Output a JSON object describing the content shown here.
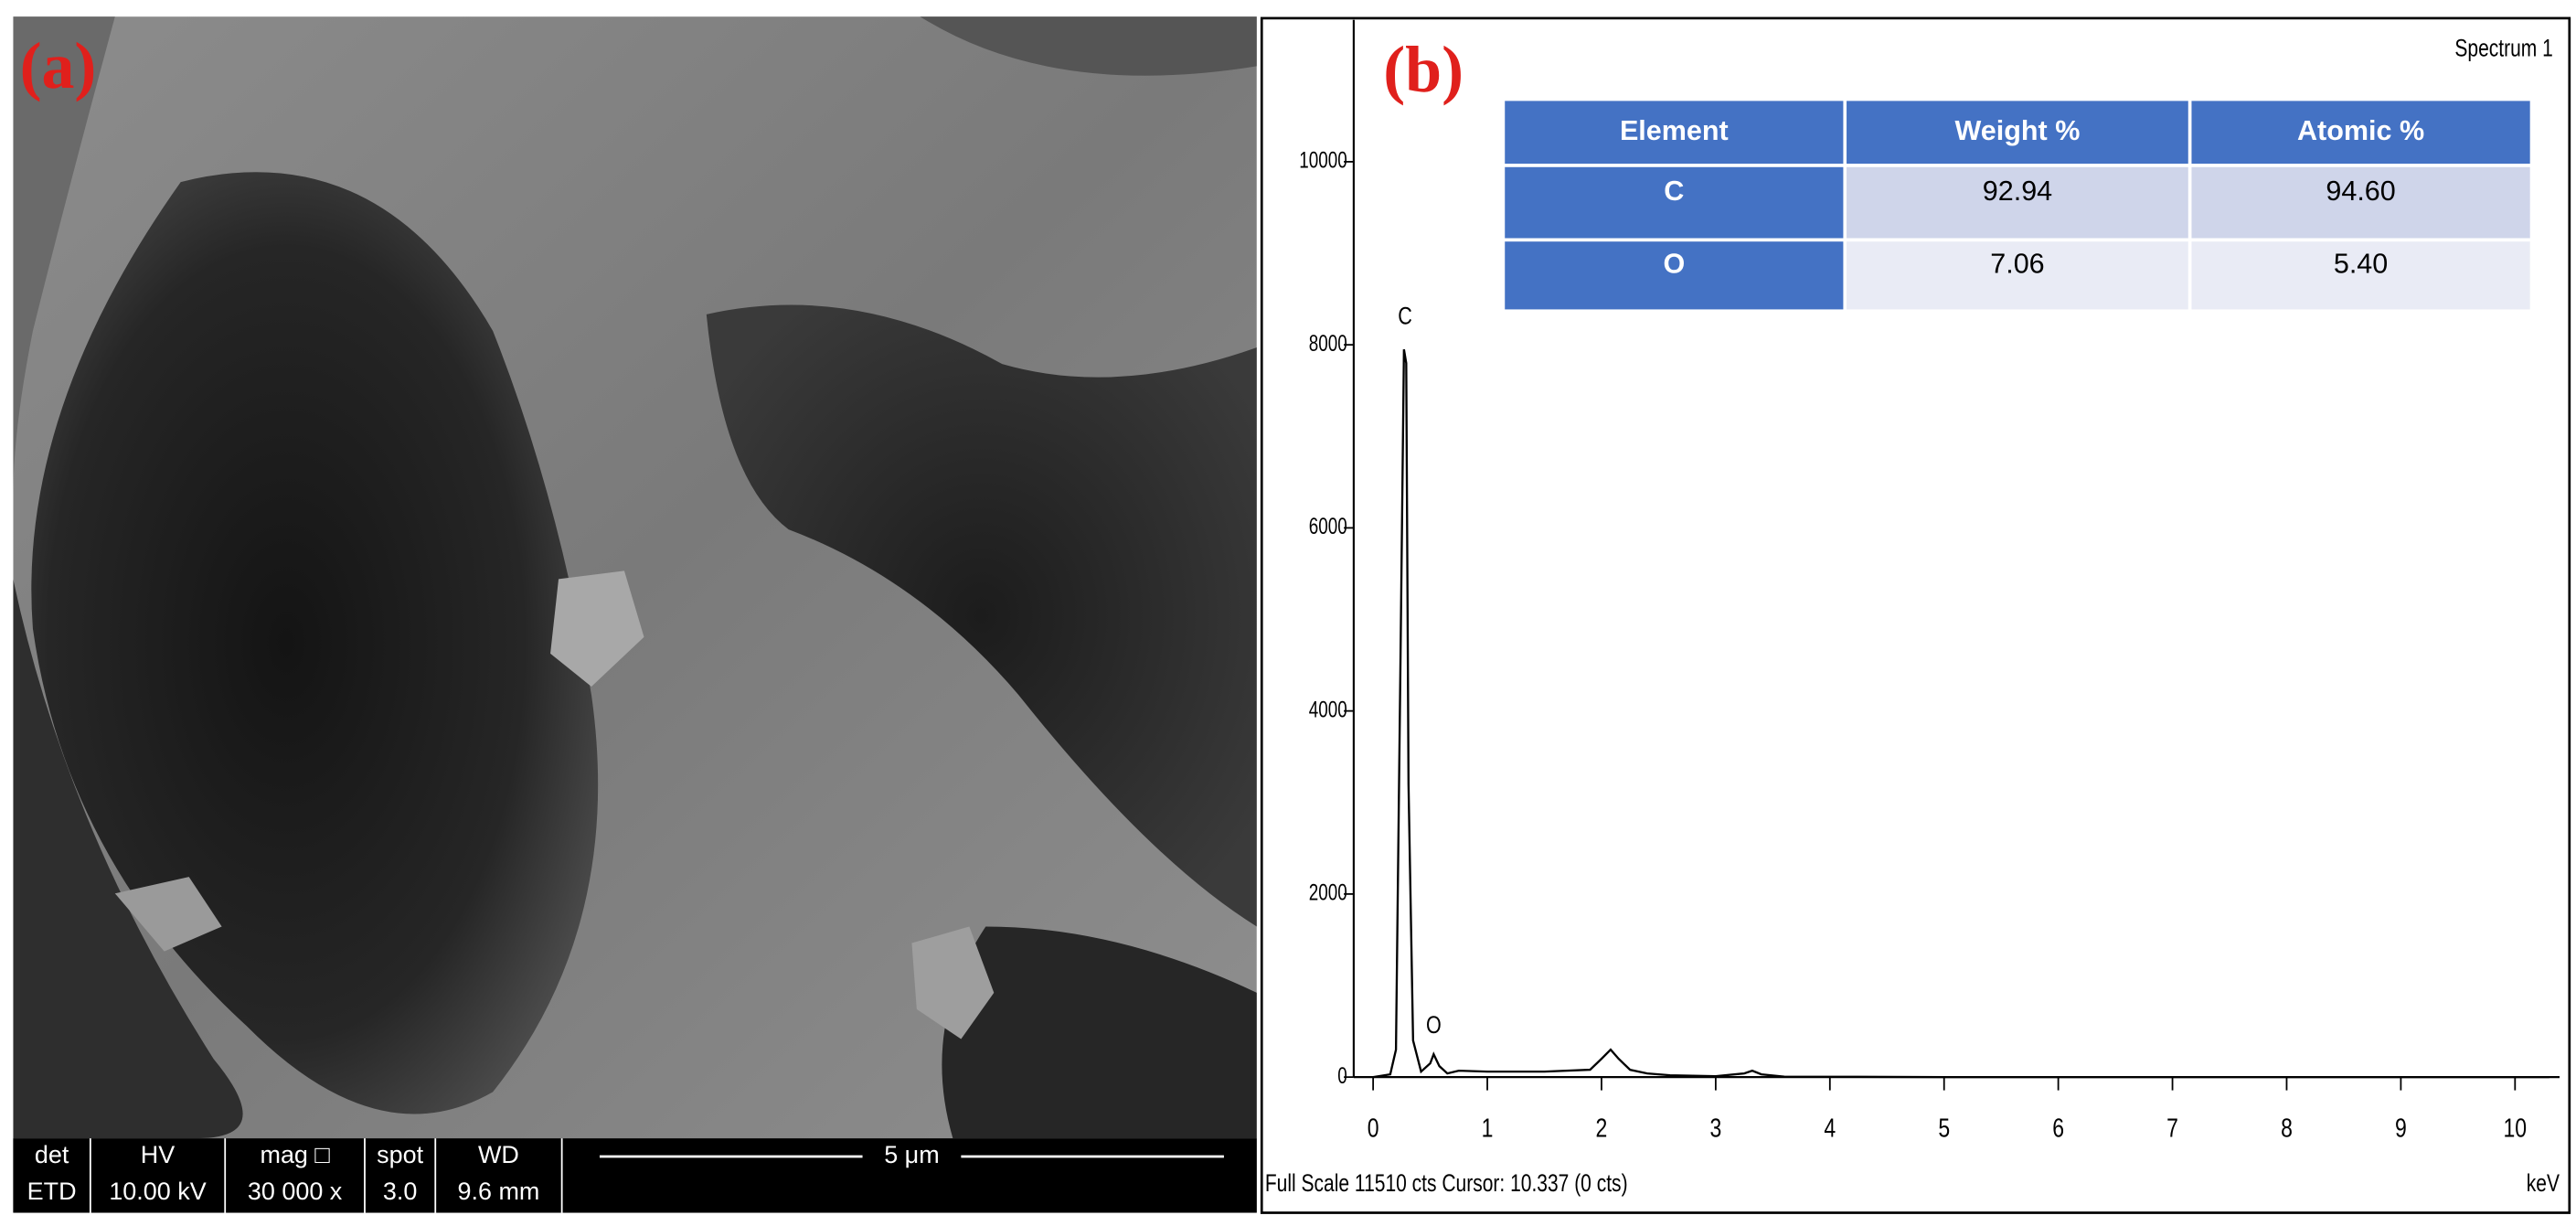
{
  "panel_labels": [
    "(a)",
    "(b)"
  ],
  "sem": {
    "columns": [
      {
        "label": "det",
        "value": "ETD"
      },
      {
        "label": "HV",
        "value": "10.00 kV"
      },
      {
        "label": "mag □",
        "value": "30 000 x"
      },
      {
        "label": "spot",
        "value": "3.0"
      },
      {
        "label": "WD",
        "value": "9.6 mm"
      }
    ],
    "scale_bar": "5 μm"
  },
  "chart_data": {
    "type": "line",
    "title": "Spectrum 1",
    "x_unit": "keV",
    "footer": "Full Scale 11510 cts Cursor: 10.337  (0 cts)",
    "color": "#000000",
    "x": [
      0,
      0.15,
      0.2,
      0.24,
      0.27,
      0.29,
      0.31,
      0.35,
      0.42,
      0.5,
      0.53,
      0.58,
      0.65,
      0.75,
      1.0,
      1.5,
      1.9,
      2.0,
      2.08,
      2.15,
      2.25,
      2.4,
      2.6,
      3.0,
      3.25,
      3.32,
      3.4,
      3.6,
      5,
      10.3
    ],
    "values": [
      0,
      30,
      300,
      4600,
      7950,
      7800,
      3200,
      400,
      60,
      150,
      250,
      120,
      40,
      70,
      60,
      60,
      80,
      200,
      300,
      200,
      80,
      40,
      20,
      10,
      40,
      70,
      30,
      5,
      0,
      0
    ],
    "xlim": [
      -0.17,
      10.39
    ],
    "ylim": [
      0,
      11550
    ],
    "xticks": [
      0,
      1,
      2,
      3,
      4,
      5,
      6,
      7,
      8,
      9,
      10
    ],
    "yticks": [
      0,
      2000,
      4000,
      6000,
      8000,
      10000
    ],
    "annotations": [
      {
        "text": "C",
        "x": 0.28,
        "y": 8300
      },
      {
        "text": "O",
        "x": 0.53,
        "y": 550
      }
    ]
  },
  "table": {
    "header": [
      "Element",
      "Weight %",
      "Atomic %"
    ],
    "rows": [
      [
        "C",
        "92.94",
        "94.60"
      ],
      [
        "O",
        "7.06",
        "5.40"
      ]
    ]
  }
}
